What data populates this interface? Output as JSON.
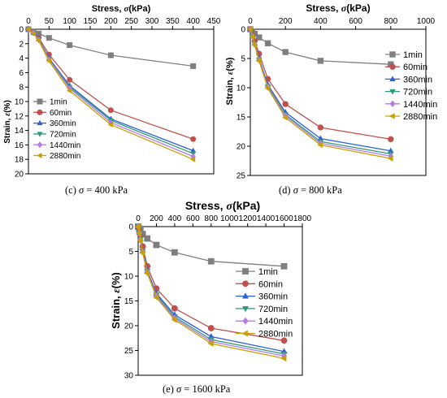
{
  "series_styles": [
    {
      "name": "1min",
      "color": "#7f7f7f",
      "marker": "square"
    },
    {
      "name": "60min",
      "color": "#c0504d",
      "marker": "circle"
    },
    {
      "name": "360min",
      "color": "#2e5fd6",
      "marker": "triangle"
    },
    {
      "name": "720min",
      "color": "#2e9a7a",
      "marker": "down-triangle"
    },
    {
      "name": "1440min",
      "color": "#b57be5",
      "marker": "diamond"
    },
    {
      "name": "2880min",
      "color": "#c8a000",
      "marker": "left-triangle"
    }
  ],
  "captions": [
    {
      "label": "(c)",
      "symbol": "σ",
      "value": "= 400 kPa"
    },
    {
      "label": "(d)",
      "symbol": "σ",
      "value": "= 800 kPa"
    },
    {
      "label": "(e)",
      "symbol": "σ",
      "value": "= 1600 kPa"
    }
  ],
  "chart_data": [
    {
      "type": "line",
      "xlabel": "Stress, σ(kPa)",
      "ylabel": "Strain, ε(%)",
      "x_axis_position": "top",
      "y_reversed": true,
      "xlim": [
        0,
        450
      ],
      "ylim": [
        0,
        20
      ],
      "xticks": [
        0,
        50,
        100,
        150,
        200,
        250,
        300,
        350,
        400,
        450
      ],
      "yticks": [
        0,
        2,
        4,
        6,
        8,
        10,
        12,
        14,
        16,
        18,
        20
      ],
      "legend_position": "bottom-left",
      "x": [
        0,
        12.5,
        25,
        50,
        100,
        200,
        400
      ],
      "series": [
        {
          "name": "1min",
          "values": [
            0,
            0.3,
            0.6,
            1.2,
            2.2,
            3.6,
            5.1
          ]
        },
        {
          "name": "60min",
          "values": [
            0,
            0.5,
            1.2,
            3.5,
            7.0,
            11.2,
            15.2
          ]
        },
        {
          "name": "360min",
          "values": [
            0,
            0.5,
            1.4,
            4.0,
            7.8,
            12.4,
            16.8
          ]
        },
        {
          "name": "720min",
          "values": [
            0,
            0.5,
            1.4,
            4.1,
            8.0,
            12.6,
            17.2
          ]
        },
        {
          "name": "1440min",
          "values": [
            0,
            0.5,
            1.5,
            4.2,
            8.2,
            12.9,
            17.6
          ]
        },
        {
          "name": "2880min",
          "values": [
            0,
            0.6,
            1.6,
            4.4,
            8.5,
            13.2,
            18.0
          ]
        }
      ]
    },
    {
      "type": "line",
      "xlabel": "Stress, σ(kPa)",
      "ylabel": "Strain, ε(%)",
      "x_axis_position": "top",
      "y_reversed": true,
      "xlim": [
        0,
        1000
      ],
      "ylim": [
        0,
        25
      ],
      "xticks": [
        0,
        200,
        400,
        600,
        800,
        1000
      ],
      "yticks": [
        0,
        5,
        10,
        15,
        20,
        25
      ],
      "legend_position": "right",
      "x": [
        0,
        12.5,
        25,
        50,
        100,
        200,
        400,
        800
      ],
      "series": [
        {
          "name": "1min",
          "values": [
            0,
            0.4,
            0.8,
            1.4,
            2.4,
            3.9,
            5.4,
            6.0
          ]
        },
        {
          "name": "60min",
          "values": [
            0,
            1.0,
            2.0,
            4.2,
            8.5,
            12.8,
            16.8,
            18.8
          ]
        },
        {
          "name": "360min",
          "values": [
            0,
            1.1,
            2.4,
            5.0,
            9.5,
            14.2,
            18.7,
            20.8
          ]
        },
        {
          "name": "720min",
          "values": [
            0,
            1.2,
            2.5,
            5.2,
            9.8,
            14.6,
            19.2,
            21.3
          ]
        },
        {
          "name": "1440min",
          "values": [
            0,
            1.2,
            2.6,
            5.3,
            9.9,
            14.8,
            19.5,
            21.7
          ]
        },
        {
          "name": "2880min",
          "values": [
            0,
            1.3,
            2.7,
            5.4,
            10.1,
            15.1,
            19.8,
            22.1
          ]
        }
      ]
    },
    {
      "type": "line",
      "xlabel": "Stress, σ(kPa)",
      "ylabel": "Strain, ε(%)",
      "x_axis_position": "top",
      "y_reversed": true,
      "xlim": [
        0,
        1800
      ],
      "ylim": [
        0,
        30
      ],
      "xticks": [
        0,
        200,
        400,
        600,
        800,
        1000,
        1200,
        1400,
        1600,
        1800
      ],
      "yticks": [
        0,
        5,
        10,
        15,
        20,
        25,
        30
      ],
      "legend_position": "right",
      "x": [
        0,
        12.5,
        25,
        50,
        100,
        200,
        400,
        800,
        1600
      ],
      "series": [
        {
          "name": "1min",
          "values": [
            0,
            0.4,
            0.8,
            1.5,
            2.4,
            3.7,
            5.2,
            7.0,
            8.0
          ]
        },
        {
          "name": "60min",
          "values": [
            0,
            1.0,
            2.0,
            4.0,
            8.0,
            12.5,
            16.5,
            20.5,
            23.0
          ]
        },
        {
          "name": "360min",
          "values": [
            0,
            1.2,
            2.5,
            4.8,
            8.8,
            13.5,
            17.8,
            22.2,
            25.2
          ]
        },
        {
          "name": "720min",
          "values": [
            0,
            1.3,
            2.6,
            5.0,
            9.0,
            13.8,
            18.2,
            22.8,
            25.7
          ]
        },
        {
          "name": "1440min",
          "values": [
            0,
            1.3,
            2.7,
            5.1,
            9.2,
            14.0,
            18.5,
            23.2,
            26.1
          ]
        },
        {
          "name": "2880min",
          "values": [
            0,
            1.4,
            2.8,
            5.3,
            9.4,
            14.3,
            18.8,
            23.6,
            26.6
          ]
        }
      ]
    }
  ]
}
